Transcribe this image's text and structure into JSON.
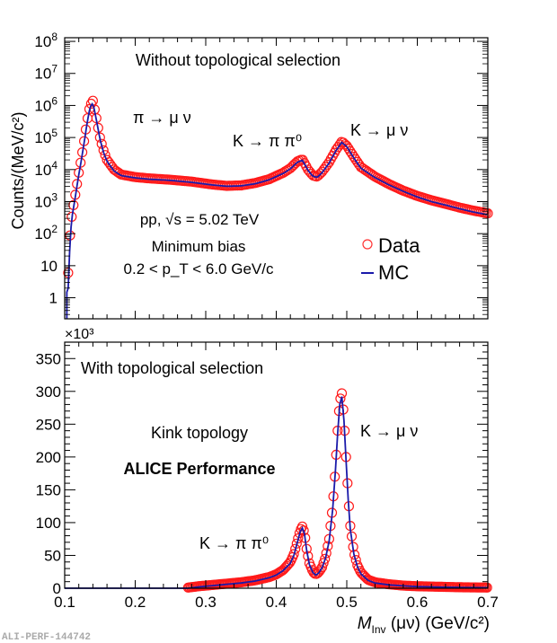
{
  "chart_data": [
    {
      "type": "scatter",
      "panel": "top",
      "yscale": "log",
      "title": "Without topological selection",
      "xlabel": "M_Inv (μν) (GeV/c²)",
      "ylabel": "Counts/(MeV/c²)",
      "xlim": [
        0.1,
        0.7
      ],
      "ylim": [
        0.22,
        130000000
      ],
      "xticks": [
        0.1,
        0.2,
        0.3,
        0.4,
        0.5,
        0.6,
        0.7
      ],
      "yticks": [
        1,
        10,
        100,
        1000,
        10000,
        100000,
        1000000,
        10000000,
        100000000
      ],
      "ytick_labels": [
        "1",
        "10",
        "10²",
        "10³",
        "10⁴",
        "10⁵",
        "10⁶",
        "10⁷",
        "10⁸"
      ],
      "legend": {
        "placement": "middle-right",
        "entries": [
          {
            "label": "Data",
            "marker": "open-circle",
            "color": "#ff0000"
          },
          {
            "label": "MC",
            "marker": "line",
            "color": "#0000aa"
          }
        ]
      },
      "annotations": {
        "pi_decay": "π → μ ν",
        "k_pipi0": "K → π π⁰",
        "k_munu": "K → μ ν",
        "collision": "pp, √s = 5.02 TeV",
        "trigger": "Minimum bias",
        "pt_range": "0.2 < p_T < 6.0 GeV/c"
      },
      "series": [
        {
          "name": "Data",
          "x": [
            0.105,
            0.108,
            0.111,
            0.114,
            0.117,
            0.12,
            0.124,
            0.128,
            0.132,
            0.136,
            0.14,
            0.145,
            0.15,
            0.155,
            0.16,
            0.17,
            0.18,
            0.2,
            0.22,
            0.25,
            0.28,
            0.31,
            0.33,
            0.35,
            0.37,
            0.39,
            0.41,
            0.42,
            0.43,
            0.437,
            0.445,
            0.452,
            0.458,
            0.465,
            0.475,
            0.485,
            0.493,
            0.5,
            0.51,
            0.52,
            0.54,
            0.56,
            0.58,
            0.6,
            0.62,
            0.64,
            0.66,
            0.68,
            0.7
          ],
          "y": [
            6,
            150,
            500,
            1200,
            3000,
            8000,
            25000,
            90000,
            350000,
            1000000,
            1400000,
            400000,
            100000,
            40000,
            20000,
            10000,
            7000,
            5800,
            5300,
            4800,
            4200,
            3400,
            3100,
            3200,
            3800,
            5000,
            8000,
            11000,
            18000,
            21000,
            10000,
            6500,
            6000,
            8500,
            17000,
            42000,
            75000,
            55000,
            25000,
            12000,
            6000,
            3500,
            2200,
            1500,
            1100,
            850,
            650,
            520,
            430
          ]
        },
        {
          "name": "MC",
          "x": [
            0.105,
            0.108,
            0.111,
            0.114,
            0.117,
            0.12,
            0.124,
            0.128,
            0.132,
            0.136,
            0.14,
            0.145,
            0.15,
            0.155,
            0.16,
            0.17,
            0.18,
            0.2,
            0.22,
            0.25,
            0.28,
            0.31,
            0.33,
            0.35,
            0.37,
            0.39,
            0.41,
            0.42,
            0.43,
            0.437,
            0.445,
            0.452,
            0.458,
            0.465,
            0.475,
            0.485,
            0.493,
            0.5,
            0.51,
            0.52,
            0.54,
            0.56,
            0.58,
            0.6,
            0.62,
            0.64,
            0.66,
            0.68,
            0.7
          ],
          "y": [
            2,
            100,
            400,
            1000,
            2600,
            7000,
            22000,
            80000,
            300000,
            900000,
            1200000,
            350000,
            90000,
            35000,
            18000,
            9000,
            6500,
            5500,
            5000,
            4600,
            4000,
            3300,
            3000,
            3100,
            3600,
            4800,
            7600,
            10500,
            17000,
            19500,
            9500,
            6200,
            5700,
            8000,
            16000,
            40000,
            70000,
            52000,
            23000,
            11000,
            5600,
            3300,
            2100,
            1400,
            1000,
            780,
            600,
            470,
            390
          ]
        }
      ]
    },
    {
      "type": "scatter",
      "panel": "bottom",
      "yscale": "linear",
      "title": "With topological selection",
      "xlabel": "M_Inv (μν) (GeV/c²)",
      "ylabel": "",
      "y_multiplier": "×10³",
      "xlim": [
        0.1,
        0.7
      ],
      "ylim": [
        0,
        375
      ],
      "xticks": [
        0.1,
        0.2,
        0.3,
        0.4,
        0.5,
        0.6,
        0.7
      ],
      "xtick_labels": [
        "0.1",
        "0.2",
        "0.3",
        "0.4",
        "0.5",
        "0.6",
        "0.7"
      ],
      "yticks": [
        0,
        50,
        100,
        150,
        200,
        250,
        300,
        350
      ],
      "ytick_labels": [
        "0",
        "50",
        "100",
        "150",
        "200",
        "250",
        "300",
        "350"
      ],
      "annotations": {
        "topology": "Kink topology",
        "performance": "ALICE Performance",
        "k_pipi0": "K → π π⁰",
        "k_munu": "K → μ ν"
      },
      "series": [
        {
          "name": "Data",
          "x": [
            0.275,
            0.29,
            0.31,
            0.33,
            0.35,
            0.37,
            0.39,
            0.4,
            0.41,
            0.42,
            0.425,
            0.43,
            0.434,
            0.437,
            0.44,
            0.443,
            0.447,
            0.452,
            0.456,
            0.46,
            0.465,
            0.47,
            0.475,
            0.48,
            0.484,
            0.487,
            0.49,
            0.493,
            0.496,
            0.499,
            0.502,
            0.505,
            0.51,
            0.515,
            0.52,
            0.53,
            0.54,
            0.56,
            0.58,
            0.6,
            0.62,
            0.64,
            0.66,
            0.68,
            0.7
          ],
          "y": [
            1,
            3,
            5,
            7,
            9,
            12,
            17,
            21,
            28,
            40,
            52,
            72,
            88,
            94,
            85,
            60,
            38,
            25,
            21,
            24,
            32,
            48,
            75,
            125,
            185,
            240,
            285,
            297,
            260,
            200,
            140,
            95,
            55,
            35,
            24,
            13,
            9,
            6,
            4,
            3,
            2.5,
            2,
            1.5,
            1.2,
            1
          ]
        },
        {
          "name": "MC",
          "x": [
            0.1,
            0.275,
            0.29,
            0.31,
            0.33,
            0.35,
            0.37,
            0.39,
            0.4,
            0.41,
            0.42,
            0.425,
            0.43,
            0.434,
            0.437,
            0.44,
            0.443,
            0.447,
            0.452,
            0.456,
            0.46,
            0.465,
            0.47,
            0.475,
            0.48,
            0.484,
            0.487,
            0.49,
            0.493,
            0.496,
            0.499,
            0.502,
            0.505,
            0.51,
            0.515,
            0.52,
            0.53,
            0.54,
            0.56,
            0.58,
            0.6,
            0.62,
            0.64,
            0.66,
            0.68,
            0.7
          ],
          "y": [
            0,
            0,
            2,
            4,
            6,
            8,
            11,
            16,
            20,
            27,
            38,
            50,
            70,
            86,
            92,
            83,
            58,
            36,
            24,
            20,
            23,
            31,
            46,
            72,
            120,
            180,
            235,
            280,
            292,
            255,
            195,
            135,
            90,
            52,
            33,
            22,
            12,
            8,
            5,
            3.5,
            2.5,
            2,
            1.5,
            1.2,
            1,
            0.8
          ]
        }
      ]
    }
  ],
  "labels": {
    "top_ylabel": "Counts/(MeV/c²)",
    "x_multiplier": "×10³",
    "xlabel_main": "M",
    "xlabel_sub": "Inv",
    "xlabel_rest": " (μν) (GeV/c²)",
    "footer": "ALI-PERF-144742",
    "legend_data": "Data",
    "legend_mc": "MC"
  }
}
